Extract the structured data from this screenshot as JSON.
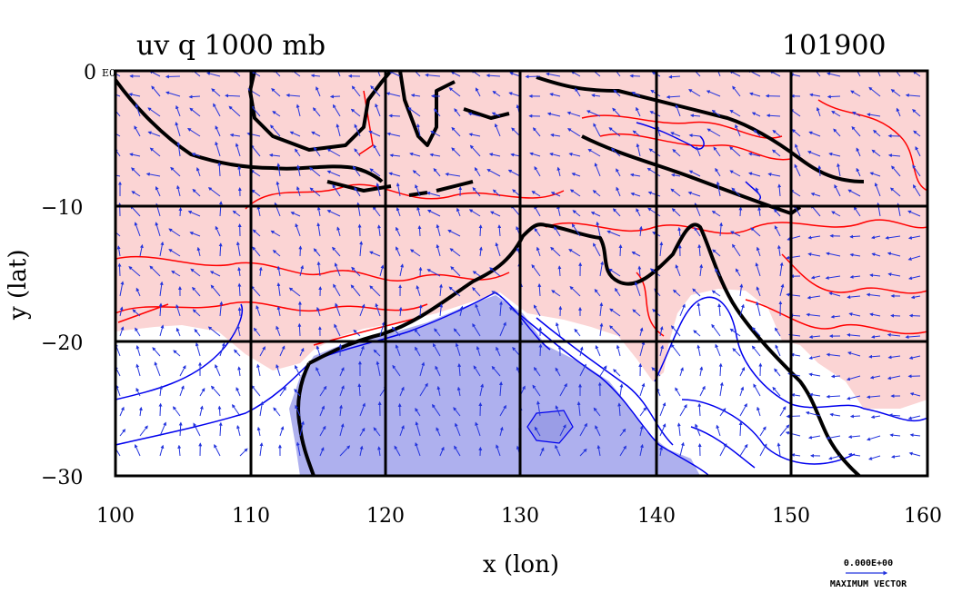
{
  "title": "uv q 1000 mb",
  "date": "101900",
  "xlabel": "x (lon)",
  "ylabel": "y (lat)",
  "corner_label": "E0",
  "xticks": [
    "100",
    "110",
    "120",
    "130",
    "140",
    "150",
    "160"
  ],
  "yticks": [
    "0",
    "−10",
    "−20",
    "−30"
  ],
  "vector_key": {
    "magnitude": "0.000E+00",
    "label": "MAXIMUM VECTOR"
  },
  "colors": {
    "moist_fill": "#fbd4d4",
    "dry_fill": "#aeb0ee",
    "red_contour": "#ff0000",
    "blue_contour": "#0000ee",
    "vector": "#2233dd",
    "coast": "#000000"
  },
  "chart_data": {
    "type": "map",
    "projection": "lon-lat",
    "xlim": [
      100,
      160
    ],
    "ylim": [
      -30,
      0
    ],
    "grid": true,
    "grid_lon": [
      110,
      120,
      130,
      140,
      150
    ],
    "grid_lat": [
      -10,
      -20
    ],
    "field": "q (specific humidity) 1000 mb with uv wind vectors",
    "regions": [
      {
        "name": "moist",
        "color": "pink"
      },
      {
        "name": "dry",
        "color": "blue"
      }
    ]
  }
}
